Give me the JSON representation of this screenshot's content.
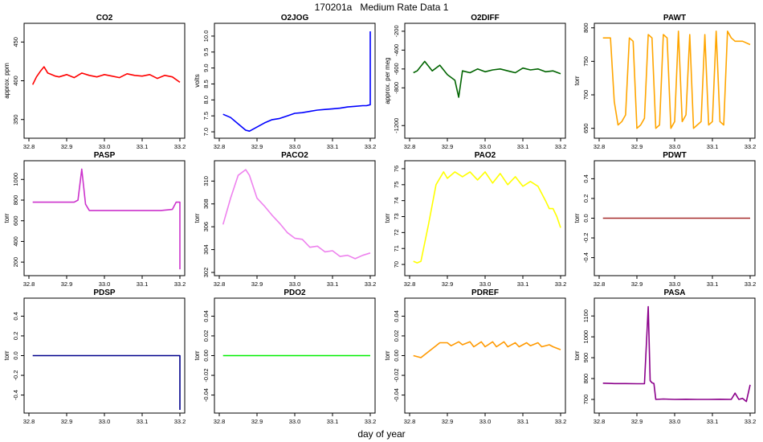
{
  "figure": {
    "title": "170201a   Medium Rate Data 1",
    "xlabel": "day of year"
  },
  "chart_data": [
    {
      "type": "line",
      "title": "CO2",
      "ylabel": "approx. ppm",
      "color": "#ff0000",
      "xlim": [
        32.8,
        33.2
      ],
      "xticks": [
        "32.8",
        "32.9",
        "33.0",
        "33.1",
        "33.2"
      ],
      "ylim": [
        330,
        470
      ],
      "yticks": [
        350,
        400,
        450
      ],
      "series": [
        {
          "x": [
            32.81,
            32.82,
            32.83,
            32.84,
            32.85,
            32.86,
            32.87,
            32.88,
            32.9,
            32.92,
            32.94,
            32.96,
            32.98,
            33.0,
            33.02,
            33.04,
            33.06,
            33.08,
            33.1,
            33.12,
            33.14,
            33.16,
            33.18,
            33.2
          ],
          "y": [
            395,
            405,
            412,
            418,
            410,
            408,
            406,
            405,
            408,
            404,
            410,
            407,
            405,
            408,
            406,
            404,
            409,
            407,
            406,
            408,
            403,
            407,
            405,
            398
          ]
        }
      ]
    },
    {
      "type": "line",
      "title": "O2JOG",
      "ylabel": "volts",
      "color": "#0000ff",
      "xlim": [
        32.8,
        33.2
      ],
      "xticks": [
        "32.8",
        "32.9",
        "33.0",
        "33.1",
        "33.2"
      ],
      "ylim": [
        6.9,
        10.3
      ],
      "yticks": [
        7.0,
        7.5,
        8.0,
        8.5,
        9.0,
        9.5,
        10.0
      ],
      "series": [
        {
          "x": [
            32.81,
            32.83,
            32.85,
            32.87,
            32.88,
            32.9,
            32.92,
            32.94,
            32.96,
            32.98,
            33.0,
            33.02,
            33.04,
            33.06,
            33.08,
            33.1,
            33.12,
            33.14,
            33.16,
            33.18,
            33.19,
            33.2,
            33.2
          ],
          "y": [
            7.55,
            7.45,
            7.25,
            7.05,
            7.02,
            7.15,
            7.28,
            7.38,
            7.42,
            7.5,
            7.58,
            7.6,
            7.64,
            7.68,
            7.7,
            7.72,
            7.74,
            7.78,
            7.8,
            7.82,
            7.82,
            7.85,
            10.15
          ]
        }
      ]
    },
    {
      "type": "line",
      "title": "O2DIFF",
      "ylabel": "approx. per meg",
      "color": "#006400",
      "xlim": [
        32.8,
        33.2
      ],
      "xticks": [
        "32.8",
        "32.9",
        "33.0",
        "33.1",
        "33.2"
      ],
      "ylim": [
        -1300,
        -150
      ],
      "yticks": [
        -1200,
        -800,
        -600,
        -400,
        -200
      ],
      "series": [
        {
          "x": [
            32.81,
            32.82,
            32.84,
            32.86,
            32.88,
            32.9,
            32.92,
            32.93,
            32.94,
            32.96,
            32.98,
            33.0,
            33.02,
            33.04,
            33.06,
            33.08,
            33.1,
            33.12,
            33.14,
            33.16,
            33.18,
            33.2
          ],
          "y": [
            -640,
            -620,
            -520,
            -620,
            -560,
            -660,
            -720,
            -900,
            -620,
            -640,
            -600,
            -630,
            -610,
            -600,
            -620,
            -640,
            -590,
            -610,
            -600,
            -630,
            -620,
            -650
          ]
        }
      ]
    },
    {
      "type": "line",
      "title": "PAWT",
      "ylabel": "torr",
      "color": "#ffa500",
      "xlim": [
        32.8,
        33.2
      ],
      "xticks": [
        "32.8",
        "32.9",
        "33.0",
        "33.1",
        "33.2"
      ],
      "ylim": [
        640,
        802
      ],
      "yticks": [
        650,
        700,
        750,
        800
      ],
      "series": [
        {
          "x": [
            32.81,
            32.83,
            32.84,
            32.85,
            32.86,
            32.87,
            32.88,
            32.89,
            32.9,
            32.91,
            32.92,
            32.93,
            32.94,
            32.95,
            32.96,
            32.97,
            32.98,
            32.99,
            33.0,
            33.01,
            33.02,
            33.03,
            33.04,
            33.05,
            33.06,
            33.07,
            33.08,
            33.09,
            33.1,
            33.11,
            33.12,
            33.13,
            33.14,
            33.15,
            33.16,
            33.18,
            33.2
          ],
          "y": [
            785,
            785,
            690,
            655,
            660,
            670,
            785,
            780,
            650,
            655,
            665,
            790,
            785,
            650,
            655,
            790,
            785,
            650,
            660,
            795,
            660,
            670,
            790,
            650,
            655,
            660,
            790,
            655,
            660,
            795,
            660,
            655,
            795,
            785,
            780,
            780,
            775
          ]
        }
      ]
    },
    {
      "type": "line",
      "title": "PASP",
      "ylabel": "torr",
      "color": "#cc33cc",
      "xlim": [
        32.8,
        33.2
      ],
      "xticks": [
        "32.8",
        "32.9",
        "33.0",
        "33.1",
        "33.2"
      ],
      "ylim": [
        100,
        1150
      ],
      "yticks": [
        200,
        400,
        600,
        800,
        1000
      ],
      "series": [
        {
          "x": [
            32.81,
            32.83,
            32.85,
            32.87,
            32.89,
            32.9,
            32.92,
            32.93,
            32.94,
            32.95,
            32.96,
            32.98,
            33.0,
            33.05,
            33.1,
            33.15,
            33.18,
            33.19,
            33.2,
            33.2
          ],
          "y": [
            780,
            780,
            780,
            780,
            780,
            780,
            780,
            800,
            1100,
            760,
            700,
            700,
            700,
            700,
            700,
            700,
            710,
            780,
            780,
            130
          ]
        }
      ]
    },
    {
      "type": "line",
      "title": "PACO2",
      "ylabel": "torr",
      "color": "#ee82ee",
      "xlim": [
        32.8,
        33.2
      ],
      "xticks": [
        "32.8",
        "32.9",
        "33.0",
        "33.1",
        "33.2"
      ],
      "ylim": [
        302,
        311.5
      ],
      "yticks": [
        302,
        304,
        306,
        308,
        310
      ],
      "series": [
        {
          "x": [
            32.81,
            32.83,
            32.85,
            32.87,
            32.88,
            32.9,
            32.92,
            32.94,
            32.96,
            32.98,
            33.0,
            33.02,
            33.04,
            33.06,
            33.08,
            33.1,
            33.12,
            33.14,
            33.16,
            33.18,
            33.2
          ],
          "y": [
            306.2,
            308.5,
            310.5,
            311,
            310.5,
            308.5,
            307.8,
            307,
            306.3,
            305.5,
            305,
            304.9,
            304.2,
            304.3,
            303.8,
            303.9,
            303.4,
            303.5,
            303.2,
            303.5,
            303.7
          ]
        }
      ]
    },
    {
      "type": "line",
      "title": "PAO2",
      "ylabel": "torr",
      "color": "#ffff00",
      "xlim": [
        32.8,
        33.2
      ],
      "xticks": [
        "32.8",
        "32.9",
        "33.0",
        "33.1",
        "33.2"
      ],
      "ylim": [
        69.5,
        76.3
      ],
      "yticks": [
        70,
        71,
        72,
        73,
        74,
        75,
        76
      ],
      "series": [
        {
          "x": [
            32.81,
            32.82,
            32.83,
            32.85,
            32.87,
            32.89,
            32.9,
            32.92,
            32.94,
            32.96,
            32.98,
            33.0,
            33.02,
            33.04,
            33.06,
            33.08,
            33.1,
            33.12,
            33.14,
            33.16,
            33.17,
            33.18,
            33.19,
            33.2
          ],
          "y": [
            70.2,
            70.1,
            70.2,
            72.5,
            75,
            75.8,
            75.4,
            75.8,
            75.5,
            75.8,
            75.3,
            75.8,
            75.1,
            75.7,
            75,
            75.5,
            74.9,
            75.2,
            74.9,
            74,
            73.5,
            73.5,
            73,
            72.3
          ]
        }
      ]
    },
    {
      "type": "line",
      "title": "PDWT",
      "ylabel": "torr",
      "color": "#a52a2a",
      "xlim": [
        32.8,
        33.2
      ],
      "xticks": [
        "32.8",
        "32.9",
        "33.0",
        "33.1",
        "33.2"
      ],
      "ylim": [
        -0.55,
        0.55
      ],
      "yticks": [
        -0.4,
        -0.2,
        0.0,
        0.2,
        0.4
      ],
      "series": [
        {
          "x": [
            32.81,
            33.2
          ],
          "y": [
            0.0,
            0.0
          ]
        }
      ]
    },
    {
      "type": "line",
      "title": "PDSP",
      "ylabel": "torr",
      "color": "#00008b",
      "xlim": [
        32.8,
        33.2
      ],
      "xticks": [
        "32.8",
        "32.9",
        "33.0",
        "33.1",
        "33.2"
      ],
      "ylim": [
        -0.55,
        0.55
      ],
      "yticks": [
        -0.4,
        -0.2,
        0.0,
        0.2,
        0.4
      ],
      "series": [
        {
          "x": [
            32.81,
            33.19,
            33.2,
            33.2
          ],
          "y": [
            0.0,
            0.0,
            0.0,
            -0.55
          ]
        }
      ]
    },
    {
      "type": "line",
      "title": "PDO2",
      "ylabel": "torr",
      "color": "#00ee00",
      "xlim": [
        32.8,
        33.2
      ],
      "xticks": [
        "32.8",
        "32.9",
        "33.0",
        "33.1",
        "33.2"
      ],
      "ylim": [
        -0.055,
        0.055
      ],
      "yticks": [
        -0.04,
        -0.02,
        0.0,
        0.02,
        0.04
      ],
      "series": [
        {
          "x": [
            32.81,
            33.2
          ],
          "y": [
            0.0,
            0.0
          ]
        }
      ]
    },
    {
      "type": "line",
      "title": "PDREF",
      "ylabel": "torr",
      "color": "#ff9900",
      "xlim": [
        32.8,
        33.2
      ],
      "xticks": [
        "32.8",
        "32.9",
        "33.0",
        "33.1",
        "33.2"
      ],
      "ylim": [
        -0.055,
        0.055
      ],
      "yticks": [
        -0.04,
        -0.02,
        0.0,
        0.02,
        0.04
      ],
      "series": [
        {
          "x": [
            32.81,
            32.83,
            32.85,
            32.87,
            32.88,
            32.9,
            32.91,
            32.93,
            32.94,
            32.96,
            32.97,
            32.99,
            33.0,
            33.02,
            33.03,
            33.05,
            33.06,
            33.08,
            33.09,
            33.11,
            33.12,
            33.14,
            33.15,
            33.17,
            33.18,
            33.2
          ],
          "y": [
            0.0,
            -0.002,
            0.004,
            0.01,
            0.013,
            0.013,
            0.01,
            0.014,
            0.011,
            0.014,
            0.009,
            0.014,
            0.009,
            0.014,
            0.009,
            0.014,
            0.009,
            0.013,
            0.009,
            0.013,
            0.01,
            0.013,
            0.009,
            0.011,
            0.009,
            0.006
          ]
        }
      ]
    },
    {
      "type": "line",
      "title": "PASA",
      "ylabel": "torr",
      "color": "#8b008b",
      "xlim": [
        32.8,
        33.2
      ],
      "xticks": [
        "32.8",
        "32.9",
        "33.0",
        "33.1",
        "33.2"
      ],
      "ylim": [
        650,
        1170
      ],
      "yticks": [
        700,
        800,
        900,
        1000,
        1100
      ],
      "series": [
        {
          "x": [
            32.81,
            32.84,
            32.87,
            32.9,
            32.92,
            32.93,
            32.935,
            32.94,
            32.945,
            32.95,
            32.97,
            33.0,
            33.03,
            33.06,
            33.09,
            33.12,
            33.15,
            33.16,
            33.17,
            33.18,
            33.19,
            33.2
          ],
          "y": [
            778,
            776,
            776,
            775,
            775,
            1145,
            790,
            780,
            776,
            700,
            702,
            700,
            701,
            700,
            700,
            701,
            700,
            730,
            700,
            705,
            690,
            770
          ]
        }
      ]
    }
  ]
}
